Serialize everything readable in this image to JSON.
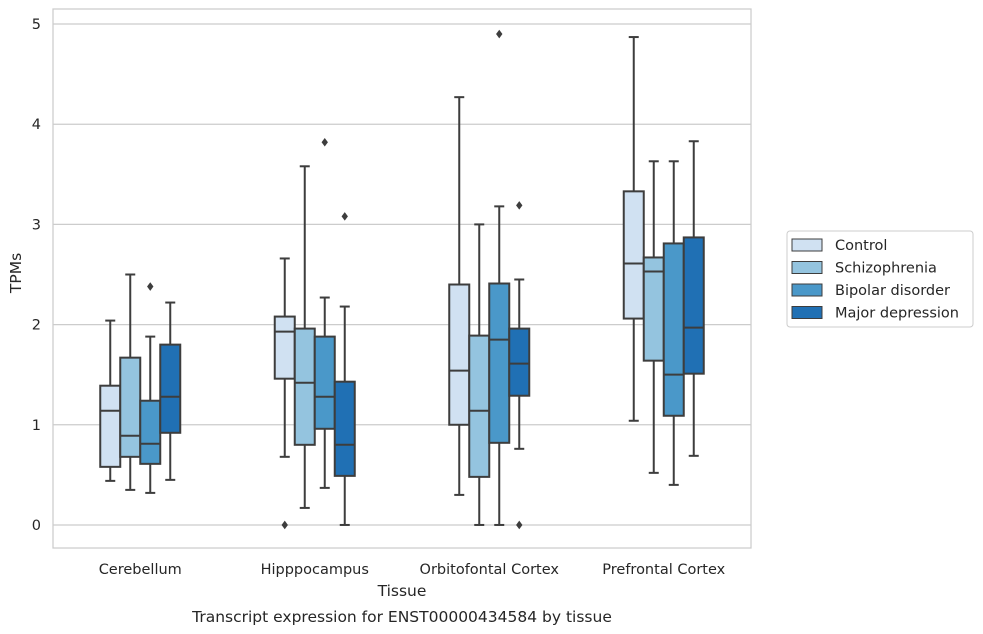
{
  "chart_data": {
    "type": "boxplot",
    "title": "",
    "caption": "Transcript expression for ENST00000434584 by tissue",
    "xlabel": "Tissue",
    "ylabel": "TPMs",
    "ylim": [
      -0.23,
      5.15
    ],
    "yticks": [
      0,
      1,
      2,
      3,
      4,
      5
    ],
    "grid": "horizontal",
    "legend_position": "right",
    "categories": [
      "Cerebellum",
      "Hipppocampus",
      "Orbitofontal Cortex",
      "Prefrontal Cortex"
    ],
    "series": [
      {
        "name": "Control",
        "color": "#d0e1f2",
        "boxes": [
          {
            "whisker_low": 0.44,
            "q1": 0.58,
            "median": 1.14,
            "q3": 1.39,
            "whisker_high": 2.04,
            "outliers": []
          },
          {
            "whisker_low": 0.68,
            "q1": 1.46,
            "median": 1.93,
            "q3": 2.08,
            "whisker_high": 2.66,
            "outliers": [
              0.0
            ]
          },
          {
            "whisker_low": 0.3,
            "q1": 1.0,
            "median": 1.54,
            "q3": 2.4,
            "whisker_high": 4.27,
            "outliers": []
          },
          {
            "whisker_low": 1.04,
            "q1": 2.06,
            "median": 2.61,
            "q3": 3.33,
            "whisker_high": 4.87,
            "outliers": []
          }
        ]
      },
      {
        "name": "Schizophrenia",
        "color": "#94c4df",
        "boxes": [
          {
            "whisker_low": 0.35,
            "q1": 0.68,
            "median": 0.89,
            "q3": 1.67,
            "whisker_high": 2.5,
            "outliers": []
          },
          {
            "whisker_low": 0.17,
            "q1": 0.8,
            "median": 1.42,
            "q3": 1.96,
            "whisker_high": 3.58,
            "outliers": []
          },
          {
            "whisker_low": 0.0,
            "q1": 0.48,
            "median": 1.14,
            "q3": 1.89,
            "whisker_high": 3.0,
            "outliers": []
          },
          {
            "whisker_low": 0.52,
            "q1": 1.64,
            "median": 2.53,
            "q3": 2.67,
            "whisker_high": 3.63,
            "outliers": []
          }
        ]
      },
      {
        "name": "Bipolar disorder",
        "color": "#4a98c9",
        "boxes": [
          {
            "whisker_low": 0.32,
            "q1": 0.61,
            "median": 0.81,
            "q3": 1.24,
            "whisker_high": 1.88,
            "outliers": [
              2.38
            ]
          },
          {
            "whisker_low": 0.37,
            "q1": 0.96,
            "median": 1.28,
            "q3": 1.88,
            "whisker_high": 2.27,
            "outliers": [
              3.82
            ]
          },
          {
            "whisker_low": 0.0,
            "q1": 0.82,
            "median": 1.85,
            "q3": 2.41,
            "whisker_high": 3.18,
            "outliers": [
              4.9
            ]
          },
          {
            "whisker_low": 0.4,
            "q1": 1.09,
            "median": 1.5,
            "q3": 2.81,
            "whisker_high": 3.63,
            "outliers": []
          }
        ]
      },
      {
        "name": "Major depression",
        "color": "#2070b4",
        "boxes": [
          {
            "whisker_low": 0.45,
            "q1": 0.92,
            "median": 1.28,
            "q3": 1.8,
            "whisker_high": 2.22,
            "outliers": []
          },
          {
            "whisker_low": 0.0,
            "q1": 0.49,
            "median": 0.8,
            "q3": 1.43,
            "whisker_high": 2.18,
            "outliers": [
              3.08
            ]
          },
          {
            "whisker_low": 0.76,
            "q1": 1.29,
            "median": 1.61,
            "q3": 1.96,
            "whisker_high": 2.45,
            "outliers": [
              3.19,
              0.0
            ]
          },
          {
            "whisker_low": 0.69,
            "q1": 1.51,
            "median": 1.97,
            "q3": 2.87,
            "whisker_high": 3.83,
            "outliers": []
          }
        ]
      }
    ]
  }
}
